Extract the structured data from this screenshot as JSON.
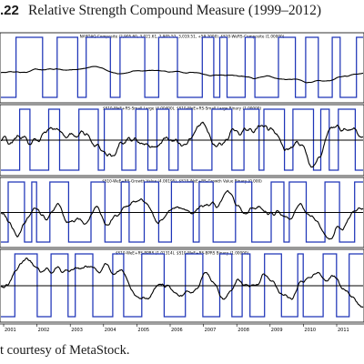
{
  "figure": {
    "number": ".22",
    "title": "Relative Strength Compound Measure (1999–2012)",
    "credit": "t courtesy of MetaStock."
  },
  "chart_data": {
    "type": "line",
    "title": "Relative Strength Compound Measure (1999–2012)",
    "x_tick_labels": [
      "2001",
      "2002",
      "2003",
      "2004",
      "2005",
      "2006",
      "2007",
      "2008",
      "2009",
      "2010",
      "2011"
    ],
    "panels": [
      {
        "label": "NASDAQ Composite (2,905.60, 3,021.61, 2,905.52, 3,019.51, +59.2000). $S10-WeRS-Composite (1.00000)",
        "series": [
          {
            "kind": "price",
            "color": "#000000"
          },
          {
            "kind": "binary",
            "color": "#1f35b8"
          }
        ],
        "reference_line": false
      },
      {
        "label": "$S10-WeE+RS-Small Large (4.00400), $S10-WeE+RS-Small Large Binary (1.00000)",
        "series": [
          {
            "kind": "oscillator",
            "color": "#000000"
          },
          {
            "kind": "binary",
            "color": "#1f35b8"
          }
        ],
        "reference_line": true
      },
      {
        "label": "$S10-WeE+RS-Growth Value (4.00195), $S10-WeE+RS-Growth Value Binary (0.000)",
        "series": [
          {
            "kind": "oscillator",
            "color": "#000000"
          },
          {
            "kind": "binary",
            "color": "#1f35b8"
          }
        ],
        "reference_line": true
      },
      {
        "label": "$S10-WeE+RS-BPRS (1.01314), $S10-WeE+RS-BPRS Binary (1.00000)",
        "series": [
          {
            "kind": "oscillator",
            "color": "#000000"
          },
          {
            "kind": "binary",
            "color": "#1f35b8"
          }
        ],
        "reference_line": true
      }
    ],
    "grid": false,
    "legend": "none"
  },
  "colors": {
    "binary": "#1f35b8",
    "price": "#000000",
    "frame": "#000000"
  }
}
